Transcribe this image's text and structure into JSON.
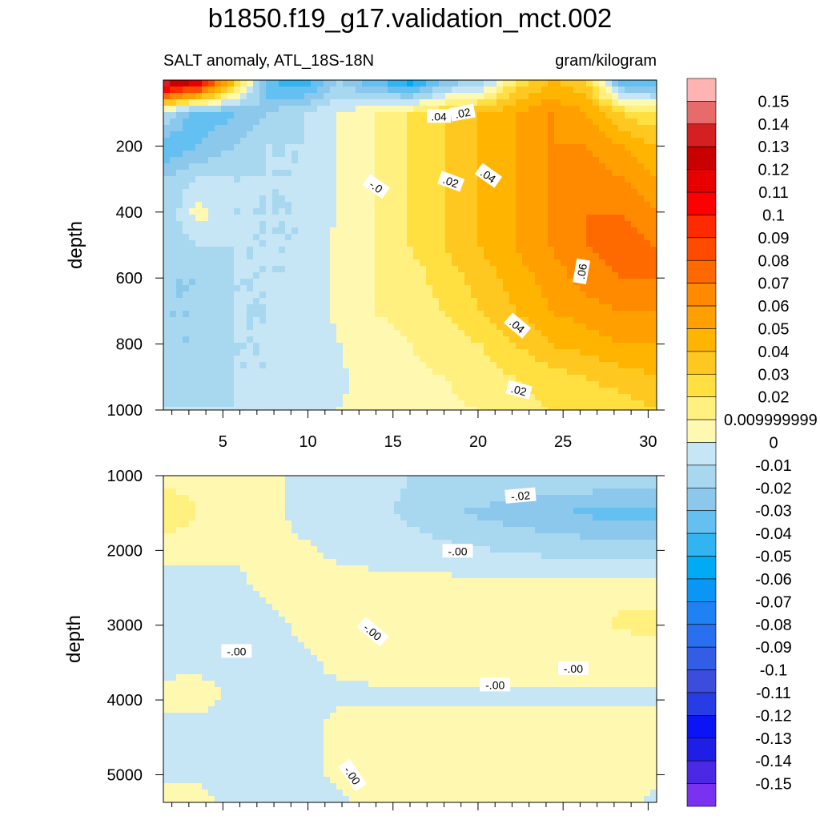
{
  "title": "b1850.f19_g17.validation_mct.002",
  "chart_data": {
    "type": "heatmap",
    "subtitle_left": "SALT anomaly, ATL_18S-18N",
    "subtitle_right": "gram/kilogram",
    "ylabel": "depth",
    "top_panel": {
      "xlim": [
        1.5,
        30.5
      ],
      "ylim": [
        1000,
        0
      ],
      "x_ticks": [
        5,
        10,
        15,
        20,
        25,
        30
      ],
      "x_tick_labels": [
        "5",
        "10",
        "15",
        "20",
        "25",
        "30"
      ],
      "y_ticks": [
        200,
        400,
        600,
        800,
        1000
      ],
      "y_tick_labels": [
        "200",
        "400",
        "600",
        "800",
        "1000"
      ],
      "contour_labels": [
        {
          "text": ".04",
          "x": 17.7,
          "y": 110,
          "angle": 0
        },
        {
          "text": ".02",
          "x": 19.1,
          "y": 100,
          "angle": -10
        },
        {
          "text": "-.0",
          "x": 14.0,
          "y": 323,
          "angle": 35
        },
        {
          "text": ".02",
          "x": 18.4,
          "y": 308,
          "angle": 20
        },
        {
          "text": ".04",
          "x": 20.6,
          "y": 290,
          "angle": 35
        },
        {
          "text": ".06",
          "x": 26.1,
          "y": 580,
          "angle": -80
        },
        {
          "text": ".04",
          "x": 22.3,
          "y": 745,
          "angle": 40
        },
        {
          "text": ".02",
          "x": 22.4,
          "y": 940,
          "angle": 15
        }
      ]
    },
    "bottom_panel": {
      "xlim": [
        1.5,
        30.5
      ],
      "ylim": [
        5370,
        1000
      ],
      "y_ticks": [
        1000,
        2000,
        3000,
        4000,
        5000
      ],
      "y_tick_labels": [
        "1000",
        "2000",
        "3000",
        "4000",
        "5000"
      ],
      "contour_labels": [
        {
          "text": "-.02",
          "x": 22.5,
          "y": 1270,
          "angle": -5
        },
        {
          "text": "-.00",
          "x": 18.8,
          "y": 2010,
          "angle": 0
        },
        {
          "text": "-.00",
          "x": 13.8,
          "y": 3090,
          "angle": 40
        },
        {
          "text": "-.00",
          "x": 5.8,
          "y": 3350,
          "angle": 0
        },
        {
          "text": "-.00",
          "x": 25.6,
          "y": 3580,
          "angle": 0
        },
        {
          "text": "-.00",
          "x": 21.0,
          "y": 3800,
          "angle": 0
        },
        {
          "text": "-.00",
          "x": 12.6,
          "y": 5010,
          "angle": 55
        }
      ]
    },
    "colorbar": {
      "levels": [
        "0.15",
        "0.14",
        "0.13",
        "0.12",
        "0.11",
        "0.1",
        "0.09",
        "0.08",
        "0.07",
        "0.06",
        "0.05",
        "0.04",
        "0.03",
        "0.02",
        "0.009999999",
        "0",
        "-0.01",
        "-0.02",
        "-0.03",
        "-0.04",
        "-0.05",
        "-0.06",
        "-0.07",
        "-0.08",
        "-0.09",
        "-0.1",
        "-0.11",
        "-0.12",
        "-0.13",
        "-0.14",
        "-0.15"
      ],
      "colors": [
        "#FFB3B3",
        "#E86B6B",
        "#D42020",
        "#C80000",
        "#E80000",
        "#FF0000",
        "#FF2A00",
        "#FF4B00",
        "#FF6A00",
        "#FF8A00",
        "#FFA000",
        "#FFB400",
        "#FFC820",
        "#FFE040",
        "#FFF080",
        "#FFF8B0",
        "#C6E6F5",
        "#A8D8F0",
        "#8CC8EC",
        "#64C0F0",
        "#32B4F0",
        "#00AAF5",
        "#0A96F5",
        "#1E82F5",
        "#2870F0",
        "#325EE6",
        "#3C4CDC",
        "#283CE6",
        "#0A14F5",
        "#1E1EE6",
        "#4B28E6",
        "#7832F0"
      ]
    },
    "top_fields": {
      "z": [
        [
          0.15,
          0.13,
          0.04,
          -0.04,
          -0.05,
          -0.02,
          -0.04,
          -0.06,
          -0.03,
          -0.02,
          0.02,
          0.04,
          0.03,
          -0.04,
          -0.04
        ],
        [
          -0.01,
          -0.04,
          -0.03,
          -0.02,
          -0.01,
          0.0,
          0.01,
          0.02,
          0.03,
          0.04,
          0.05,
          0.06,
          0.05,
          0.03,
          0.02
        ],
        [
          -0.04,
          -0.03,
          -0.02,
          -0.01,
          -0.01,
          0.0,
          0.01,
          0.02,
          0.03,
          0.04,
          0.05,
          0.06,
          0.06,
          0.05,
          0.04
        ],
        [
          -0.02,
          -0.01,
          -0.01,
          -0.01,
          -0.01,
          0.0,
          0.01,
          0.02,
          0.03,
          0.04,
          0.05,
          0.06,
          0.07,
          0.06,
          0.05
        ],
        [
          -0.02,
          0.005,
          -0.01,
          -0.01,
          -0.01,
          0.0,
          0.01,
          0.02,
          0.03,
          0.04,
          0.05,
          0.06,
          0.07,
          0.07,
          0.06
        ],
        [
          -0.02,
          -0.01,
          -0.01,
          -0.01,
          -0.01,
          0.005,
          0.01,
          0.02,
          0.03,
          0.04,
          0.05,
          0.06,
          0.07,
          0.075,
          0.07
        ],
        [
          -0.02,
          -0.02,
          -0.01,
          -0.01,
          -0.01,
          0.005,
          0.01,
          0.015,
          0.025,
          0.035,
          0.045,
          0.055,
          0.065,
          0.07,
          0.07
        ],
        [
          -0.02,
          -0.02,
          -0.01,
          -0.01,
          -0.005,
          0.002,
          0.01,
          0.015,
          0.02,
          0.03,
          0.04,
          0.05,
          0.055,
          0.06,
          0.06
        ],
        [
          -0.02,
          -0.02,
          -0.01,
          -0.01,
          -0.005,
          0.0,
          0.005,
          0.01,
          0.015,
          0.02,
          0.03,
          0.04,
          0.045,
          0.05,
          0.05
        ],
        [
          -0.015,
          -0.015,
          -0.01,
          -0.01,
          -0.005,
          -0.001,
          0.003,
          0.008,
          0.01,
          0.015,
          0.02,
          0.025,
          0.03,
          0.035,
          0.04
        ],
        [
          -0.01,
          -0.01,
          -0.01,
          -0.005,
          -0.002,
          0.0,
          0.002,
          0.005,
          0.008,
          0.01,
          0.015,
          0.02,
          0.02,
          0.025,
          0.03
        ]
      ]
    },
    "bottom_fields": {
      "z": [
        [
          0.005,
          0.005,
          0.005,
          0.003,
          -0.003,
          -0.005,
          -0.005,
          -0.01,
          -0.01,
          -0.01,
          -0.01,
          -0.01,
          -0.01,
          -0.01,
          -0.01
        ],
        [
          0.02,
          0.01,
          0.005,
          0.003,
          -0.003,
          -0.005,
          -0.008,
          -0.012,
          -0.018,
          -0.022,
          -0.025,
          -0.028,
          -0.032,
          -0.035,
          -0.035
        ],
        [
          0.004,
          0.003,
          0.002,
          0.002,
          0.001,
          -0.002,
          -0.004,
          -0.006,
          -0.008,
          -0.01,
          -0.012,
          -0.014,
          -0.015,
          -0.015,
          -0.015
        ],
        [
          -0.004,
          -0.003,
          -0.002,
          0.002,
          0.003,
          0.003,
          0.003,
          0.003,
          0.003,
          0.003,
          0.003,
          0.003,
          0.003,
          0.003,
          0.003
        ],
        [
          -0.004,
          -0.003,
          -0.002,
          -0.002,
          0.002,
          0.003,
          0.004,
          0.004,
          0.004,
          0.004,
          0.004,
          0.004,
          0.006,
          0.012,
          0.014
        ],
        [
          -0.003,
          -0.003,
          -0.002,
          -0.002,
          -0.001,
          0.002,
          0.003,
          0.003,
          0.003,
          0.003,
          0.003,
          0.003,
          0.004,
          0.005,
          0.005
        ],
        [
          0.002,
          0.003,
          -0.002,
          -0.002,
          -0.002,
          -0.001,
          -0.001,
          -0.001,
          -0.001,
          -0.001,
          -0.001,
          -0.001,
          -0.001,
          -0.001,
          -0.001
        ],
        [
          -0.002,
          -0.002,
          -0.002,
          -0.002,
          -0.002,
          0.002,
          0.002,
          0.002,
          0.002,
          0.002,
          0.002,
          0.002,
          0.002,
          0.002,
          0.002
        ],
        [
          -0.002,
          -0.002,
          -0.002,
          -0.002,
          -0.002,
          0.002,
          0.003,
          0.003,
          0.003,
          0.003,
          0.003,
          0.003,
          0.003,
          0.003,
          0.003
        ],
        [
          0.002,
          0.002,
          -0.002,
          -0.002,
          -0.002,
          -0.001,
          0.002,
          0.002,
          0.002,
          0.002,
          0.002,
          0.002,
          0.002,
          0.002,
          -0.002
        ]
      ]
    }
  }
}
